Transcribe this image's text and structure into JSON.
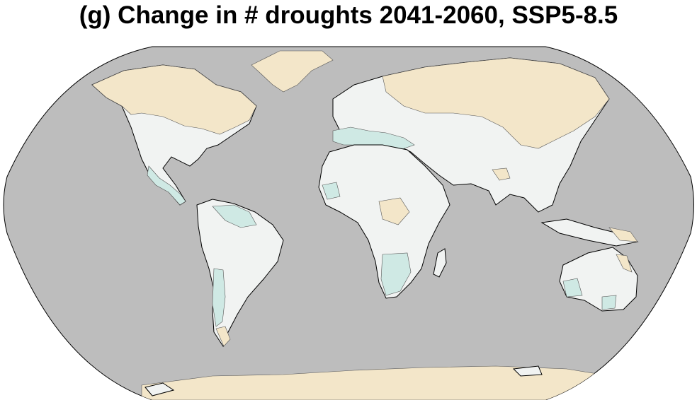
{
  "title": "(g) Change in # droughts 2041-2060, SSP5-8.5",
  "colors": {
    "ocean": "#bdbdbd",
    "no_change": "#f1f3f2",
    "increase": "#f3e6c9",
    "decrease": "#cfe9e4",
    "coast": "#000000"
  }
}
